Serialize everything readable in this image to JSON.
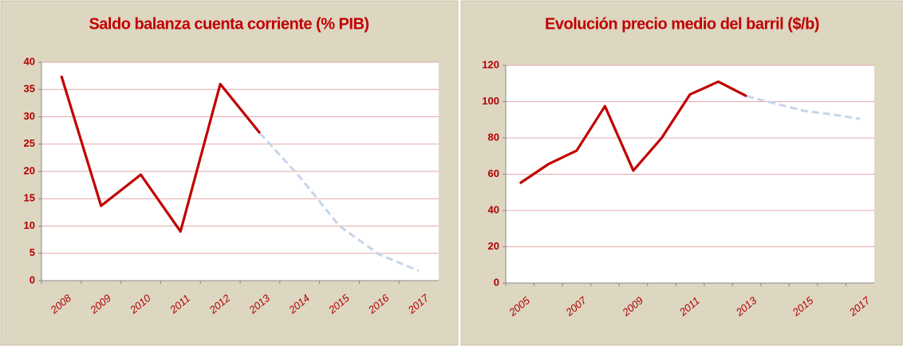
{
  "chart_data": [
    {
      "type": "line",
      "title": "Saldo balanza cuenta corriente (% PIB)",
      "categories": [
        "2008",
        "2009",
        "2010",
        "2011",
        "2012",
        "2013",
        "2014",
        "2015",
        "2016",
        "2017"
      ],
      "series": [
        {
          "color": "#c00000",
          "dash": false,
          "values": [
            37.5,
            13.7,
            19.4,
            9,
            36,
            27,
            null,
            null,
            null,
            null
          ]
        },
        {
          "color": "#c5d5ea",
          "dash": true,
          "values": [
            null,
            null,
            null,
            null,
            null,
            27,
            19,
            10,
            4.8,
            1.8
          ]
        }
      ],
      "ylim": [
        0,
        40
      ],
      "yticks": [
        0,
        5,
        10,
        15,
        20,
        25,
        30,
        35,
        40
      ],
      "grid": true
    },
    {
      "type": "line",
      "title": "Evolución precio medio del barril ($/b)",
      "categories": [
        "2005",
        null,
        "2007",
        null,
        "2009",
        null,
        "2011",
        null,
        "2013",
        null,
        "2015",
        null,
        "2017"
      ],
      "series": [
        {
          "color": "#c00000",
          "dash": false,
          "values": [
            55,
            65.5,
            73,
            97.5,
            62,
            80,
            104,
            111,
            103,
            null,
            null,
            null,
            null
          ]
        },
        {
          "color": "#c5d5ea",
          "dash": true,
          "values": [
            null,
            null,
            null,
            null,
            null,
            null,
            null,
            null,
            103,
            99,
            95,
            93,
            90.5
          ]
        }
      ],
      "ylim": [
        0,
        120
      ],
      "yticks": [
        0,
        20,
        40,
        60,
        80,
        100,
        120
      ],
      "grid": true
    }
  ]
}
